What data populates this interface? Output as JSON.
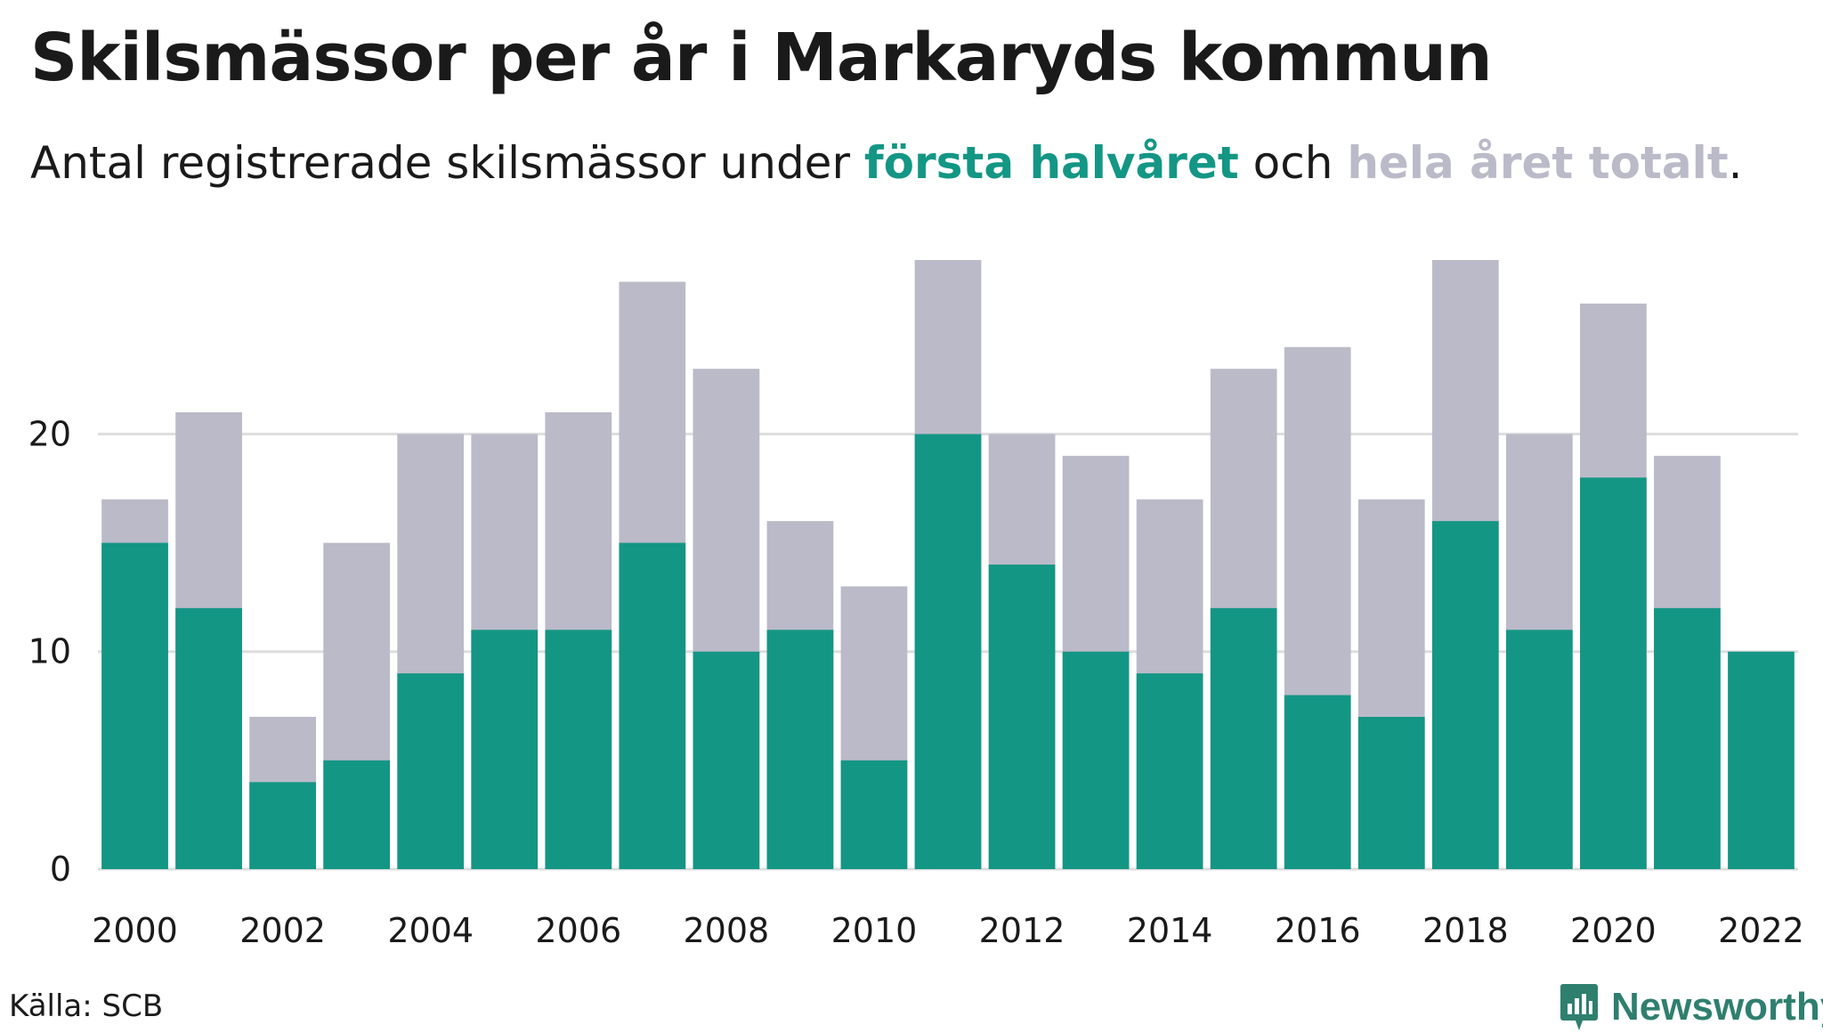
{
  "title": "Skilsmässor per år i Markaryds kommun",
  "subtitle": {
    "before": "Antal registrerade skilsmässor under ",
    "first_half": "första halvåret",
    "middle": " och ",
    "total": "hela året totalt",
    "after": "."
  },
  "source": "Källa: SCB",
  "brand": {
    "name": "Newsworthy",
    "icon": "newsworthy-logo-icon"
  },
  "colors": {
    "first_half": "#149685",
    "total": "#bbbac8",
    "grid": "#dddddd",
    "text": "#1a1a1a"
  },
  "chart_data": {
    "type": "bar",
    "stacking": "overlay",
    "categories": [
      "2000",
      "2001",
      "2002",
      "2003",
      "2004",
      "2005",
      "2006",
      "2007",
      "2008",
      "2009",
      "2010",
      "2011",
      "2012",
      "2013",
      "2014",
      "2015",
      "2016",
      "2017",
      "2018",
      "2019",
      "2020",
      "2021",
      "2022"
    ],
    "x_tick_labels": [
      "2000",
      "2002",
      "2004",
      "2006",
      "2008",
      "2010",
      "2012",
      "2014",
      "2016",
      "2018",
      "2020",
      "2022"
    ],
    "series": [
      {
        "name": "hela året totalt",
        "values": [
          17,
          21,
          7,
          15,
          20,
          20,
          21,
          27,
          23,
          16,
          13,
          28,
          20,
          19,
          17,
          23,
          24,
          17,
          28,
          20,
          26,
          19,
          null
        ]
      },
      {
        "name": "första halvåret",
        "values": [
          15,
          12,
          4,
          5,
          9,
          11,
          11,
          15,
          10,
          11,
          5,
          20,
          14,
          10,
          9,
          12,
          8,
          7,
          16,
          11,
          18,
          12,
          10
        ]
      }
    ],
    "y_ticks": [
      0,
      10,
      20
    ],
    "ylim": [
      0,
      28
    ],
    "grid": true,
    "xlabel": "",
    "ylabel": ""
  }
}
